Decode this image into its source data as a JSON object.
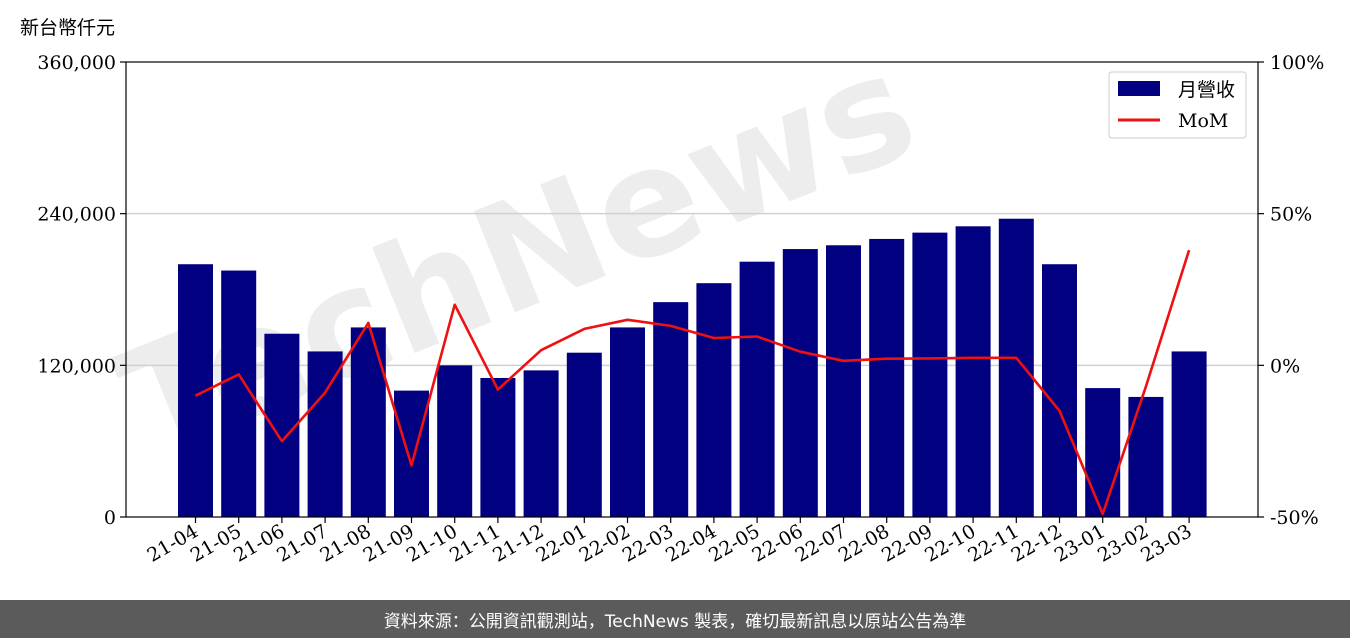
{
  "chart_data": {
    "type": "bar",
    "ylabel": "新台幣仟元",
    "categories": [
      "21-04",
      "21-05",
      "21-06",
      "21-07",
      "21-08",
      "21-09",
      "21-10",
      "21-11",
      "21-12",
      "22-01",
      "22-02",
      "22-03",
      "22-04",
      "22-05",
      "22-06",
      "22-07",
      "22-08",
      "22-09",
      "22-10",
      "22-11",
      "22-12",
      "23-01",
      "23-02",
      "23-03"
    ],
    "series": [
      {
        "name": "月營收",
        "kind": "bar",
        "axis": "left",
        "color": "#000080",
        "values": [
          200000,
          195000,
          145000,
          131000,
          150000,
          100000,
          120000,
          110000,
          116000,
          130000,
          150000,
          170000,
          185000,
          202000,
          212000,
          215000,
          220000,
          225000,
          230000,
          236000,
          200000,
          102000,
          95000,
          131000
        ]
      },
      {
        "name": "MoM",
        "kind": "line",
        "axis": "right",
        "color": "#ee1111",
        "values": [
          -10,
          -3,
          -25,
          -9,
          14,
          -33,
          20,
          -8,
          5,
          12,
          15,
          13,
          9,
          9.5,
          4.5,
          1.5,
          2.2,
          2.3,
          2.5,
          2.5,
          -15,
          -49,
          -7,
          38
        ]
      }
    ],
    "ylim": [
      0,
      360000
    ],
    "yticks": [
      "0",
      "120,000",
      "240,000",
      "360,000"
    ],
    "yticks_values": [
      0,
      120000,
      240000,
      360000
    ],
    "y2lim": [
      -50,
      100
    ],
    "y2ticks": [
      "-50%",
      "0%",
      "50%",
      "100%"
    ],
    "y2ticks_values": [
      -50,
      0,
      50,
      100
    ],
    "grid": "horizontal",
    "legend": "top-right"
  },
  "watermark": "TechNews",
  "footer": {
    "text": "資料來源：公開資訊觀測站，TechNews 製表，確切最新訊息以原站公告為準"
  }
}
